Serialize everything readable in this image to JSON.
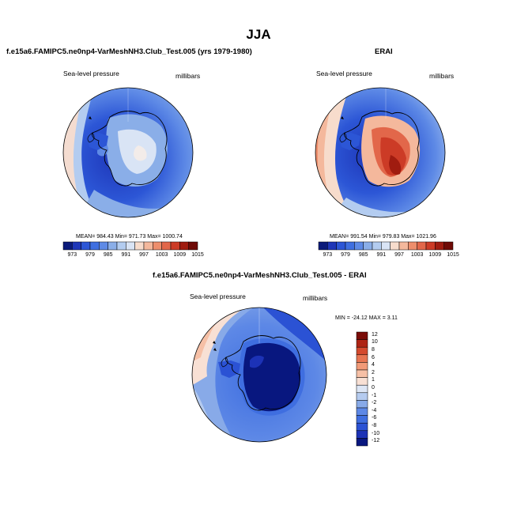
{
  "page": {
    "title": "JJA"
  },
  "palettes": {
    "full": [
      "#0b1a7a",
      "#1e36b8",
      "#2c56d6",
      "#3f6fe0",
      "#5e8ae6",
      "#8aaee8",
      "#b3ccf0",
      "#d9e4f5",
      "#f7dccc",
      "#f4b89c",
      "#ee8e6c",
      "#e2674a",
      "#cc3b26",
      "#a01c10",
      "#6f0a06"
    ],
    "diff": [
      "#08177f",
      "#1c32b6",
      "#2b52d4",
      "#3f6ee0",
      "#5d88e6",
      "#88aae8",
      "#b5cbef",
      "#dde6f5",
      "#f8e0d4",
      "#f6c0a6",
      "#f19a78",
      "#e77552",
      "#d44a2e",
      "#ae2414",
      "#7a0c07"
    ]
  },
  "panels": [
    {
      "title": "f.e15a6.FAMIPC5.ne0np4-VarMeshNH3.Club_Test.005 (yrs 1979-1980)",
      "left_label": "Sea-level pressure",
      "right_label": "millibars",
      "stats": "MEAN= 984.43  Min= 971.73  Max= 1000.74",
      "ticks": [
        "973",
        "979",
        "985",
        "991",
        "997",
        "1003",
        "1009",
        "1015"
      ]
    },
    {
      "title": "ERAI",
      "left_label": "Sea-level pressure",
      "right_label": "millibars",
      "stats": "MEAN= 991.54  Min= 979.83  Max= 1021.96",
      "ticks": [
        "973",
        "979",
        "985",
        "991",
        "997",
        "1003",
        "1009",
        "1015"
      ]
    },
    {
      "title": "f.e15a6.FAMIPC5.ne0np4-VarMeshNH3.Club_Test.005 - ERAI",
      "left_label": "Sea-level pressure",
      "right_label": "millibars",
      "stats": "MIN = -24.12  MAX =   3.11",
      "ticks": [
        "12",
        "10",
        "8",
        "6",
        "4",
        "2",
        "1",
        "0",
        "-1",
        "-2",
        "-4",
        "-6",
        "-8",
        "-10",
        "-12"
      ]
    }
  ]
}
